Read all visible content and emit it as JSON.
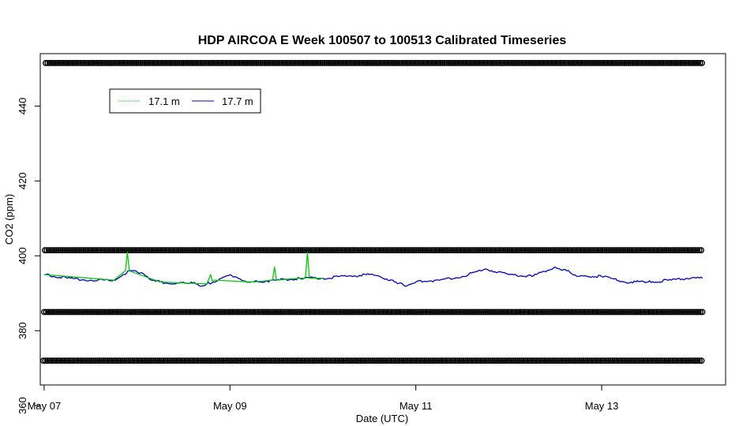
{
  "chart_data": {
    "type": "line",
    "title": "HDP AIRCOA E  Week 100507 to 100513  Calibrated Timeseries",
    "xlabel": "Date (UTC)",
    "ylabel": "CO2 (ppm)",
    "x_ticks": [
      {
        "value": "2010-05-07",
        "label": "May 07"
      },
      {
        "value": "2010-05-09",
        "label": "May 09"
      },
      {
        "value": "2010-05-11",
        "label": "May 11"
      },
      {
        "value": "2010-05-13",
        "label": "May 13"
      }
    ],
    "y_ticks": [
      360,
      380,
      400,
      420,
      440
    ],
    "xlim": [
      "2010-05-06T23:00",
      "2010-05-14T08:00"
    ],
    "ylim": [
      365.5,
      454
    ],
    "grid": false,
    "legend_placement": "top-left",
    "legend": [
      {
        "label": "17.1 m",
        "color": "#00cc00"
      },
      {
        "label": "17.7 m",
        "color": "#0000cc"
      }
    ],
    "series": [
      {
        "name": "17.7 m",
        "color": "#0000cc",
        "x": [
          "2010-05-07T00:00",
          "2010-05-07T06:00",
          "2010-05-07T12:00",
          "2010-05-07T18:00",
          "2010-05-07T22:00",
          "2010-05-08T01:00",
          "2010-05-08T03:00",
          "2010-05-08T06:00",
          "2010-05-08T10:00",
          "2010-05-08T14:00",
          "2010-05-08T16:00",
          "2010-05-08T18:00",
          "2010-05-08T21:00",
          "2010-05-09T00:00",
          "2010-05-09T03:00",
          "2010-05-09T06:00",
          "2010-05-09T12:00",
          "2010-05-09T18:00",
          "2010-05-10T00:00",
          "2010-05-10T06:00",
          "2010-05-10T12:00",
          "2010-05-10T18:00",
          "2010-05-10T21:00",
          "2010-05-11T00:00",
          "2010-05-11T06:00",
          "2010-05-11T12:00",
          "2010-05-11T18:00",
          "2010-05-12T00:00",
          "2010-05-12T06:00",
          "2010-05-12T12:00",
          "2010-05-12T15:00",
          "2010-05-12T18:00",
          "2010-05-13T00:00",
          "2010-05-13T06:00",
          "2010-05-13T12:00",
          "2010-05-13T18:00",
          "2010-05-13T22:00",
          "2010-05-14T02:00"
        ],
        "values": [
          395,
          394,
          393.5,
          393.5,
          396,
          395.5,
          394,
          393,
          392.5,
          393,
          392,
          392.5,
          393.5,
          395,
          393.5,
          393,
          393.5,
          394,
          394,
          394.5,
          395,
          393.5,
          392,
          393,
          393.5,
          394.5,
          396.5,
          395,
          394.5,
          397,
          396,
          394.5,
          394.5,
          393,
          393,
          393.5,
          394,
          394
        ]
      },
      {
        "name": "17.1 m",
        "color": "#00cc00",
        "x": [
          "2010-05-07T00:00",
          "2010-05-07T18:00",
          "2010-05-07T21:00",
          "2010-05-07T21:30",
          "2010-05-07T22:00",
          "2010-05-08T06:00",
          "2010-05-08T18:00",
          "2010-05-08T19:00",
          "2010-05-08T19:30",
          "2010-05-08T20:00",
          "2010-05-09T06:00",
          "2010-05-09T11:00",
          "2010-05-09T11:30",
          "2010-05-09T12:00",
          "2010-05-09T18:00",
          "2010-05-09T19:30",
          "2010-05-09T20:00",
          "2010-05-09T20:30",
          "2010-05-10T00:00"
        ],
        "values": [
          395,
          393.5,
          396,
          401,
          396,
          393,
          392.5,
          395,
          393,
          393.5,
          393,
          393.5,
          397,
          393.5,
          394,
          394,
          401,
          394,
          394
        ]
      }
    ],
    "calibration_points": [
      {
        "level": 451.5
      },
      {
        "level": 401.5
      },
      {
        "level": 385
      },
      {
        "level": 372
      }
    ]
  }
}
